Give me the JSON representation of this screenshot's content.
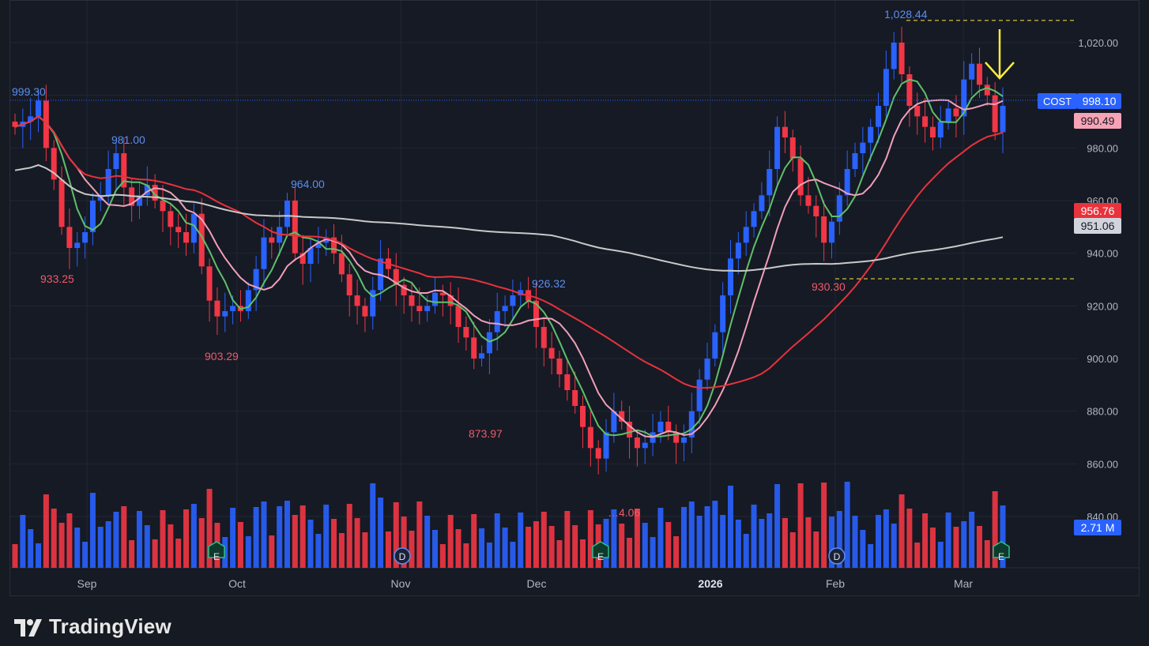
{
  "brand": {
    "logo_name": "tradingview-logo-icon",
    "name": "TradingView"
  },
  "colors": {
    "bg": "#161a25",
    "grid": "#222633",
    "up": "#2962ff",
    "down": "#f23645",
    "ma_green": "#5fbf6a",
    "ma_pink": "#f0a0b8",
    "ma_red": "#e8323c",
    "ma_white": "#c9c9c9",
    "annot": "#ffeb3b",
    "axis_text": "#b2b5be"
  },
  "chart_data": {
    "type": "candlestick",
    "symbol": "COST",
    "last_price": "998.10",
    "ma_labels": [
      "990.49",
      "956.76",
      "951.06"
    ],
    "volume_label": "2.71 M",
    "ylim": [
      840,
      1030
    ],
    "yticks": [
      "1,020.00",
      "980.00",
      "960.00",
      "940.00",
      "920.00",
      "900.00",
      "880.00",
      "860.00",
      "840.00"
    ],
    "xticks": [
      "Sep",
      "Oct",
      "Nov",
      "Dec",
      "2026",
      "Feb",
      "Mar"
    ],
    "price_labels": [
      {
        "text": "999.30",
        "color": "up"
      },
      {
        "text": "981.00",
        "color": "up"
      },
      {
        "text": "933.25",
        "color": "down"
      },
      {
        "text": "964.00",
        "color": "up"
      },
      {
        "text": "903.29",
        "color": "down"
      },
      {
        "text": "926.32",
        "color": "up"
      },
      {
        "text": "873.97",
        "color": "down"
      },
      {
        "text": "1,028.44",
        "color": "up"
      },
      {
        "text": "930.30",
        "color": "down"
      },
      {
        "text": "…4.06",
        "color": "down"
      }
    ],
    "event_markers": [
      "E",
      "D",
      "E",
      "D",
      "E"
    ],
    "close_path": [
      988,
      990,
      992,
      998,
      980,
      968,
      950,
      942,
      944,
      948,
      960,
      962,
      972,
      978,
      965,
      958,
      962,
      966,
      960,
      956,
      950,
      948,
      944,
      955,
      935,
      922,
      916,
      918,
      920,
      918,
      926,
      934,
      946,
      944,
      950,
      960,
      940,
      936,
      942,
      944,
      946,
      940,
      932,
      924,
      920,
      916,
      926,
      938,
      934,
      928,
      924,
      920,
      918,
      920,
      925,
      924,
      920,
      912,
      908,
      900,
      902,
      910,
      918,
      920,
      924,
      926,
      922,
      912,
      904,
      900,
      894,
      888,
      882,
      874,
      866,
      862,
      872,
      880,
      876,
      870,
      866,
      868,
      872,
      876,
      872,
      868,
      870,
      880,
      892,
      900,
      910,
      924,
      938,
      944,
      950,
      956,
      962,
      972,
      988,
      984,
      976,
      962,
      958,
      954,
      944,
      952,
      962,
      972,
      978,
      982,
      988,
      996,
      1010,
      1020,
      1008,
      996,
      992,
      988,
      984,
      990,
      995,
      992,
      1006,
      1012,
      1004,
      1000,
      986,
      996
    ]
  }
}
